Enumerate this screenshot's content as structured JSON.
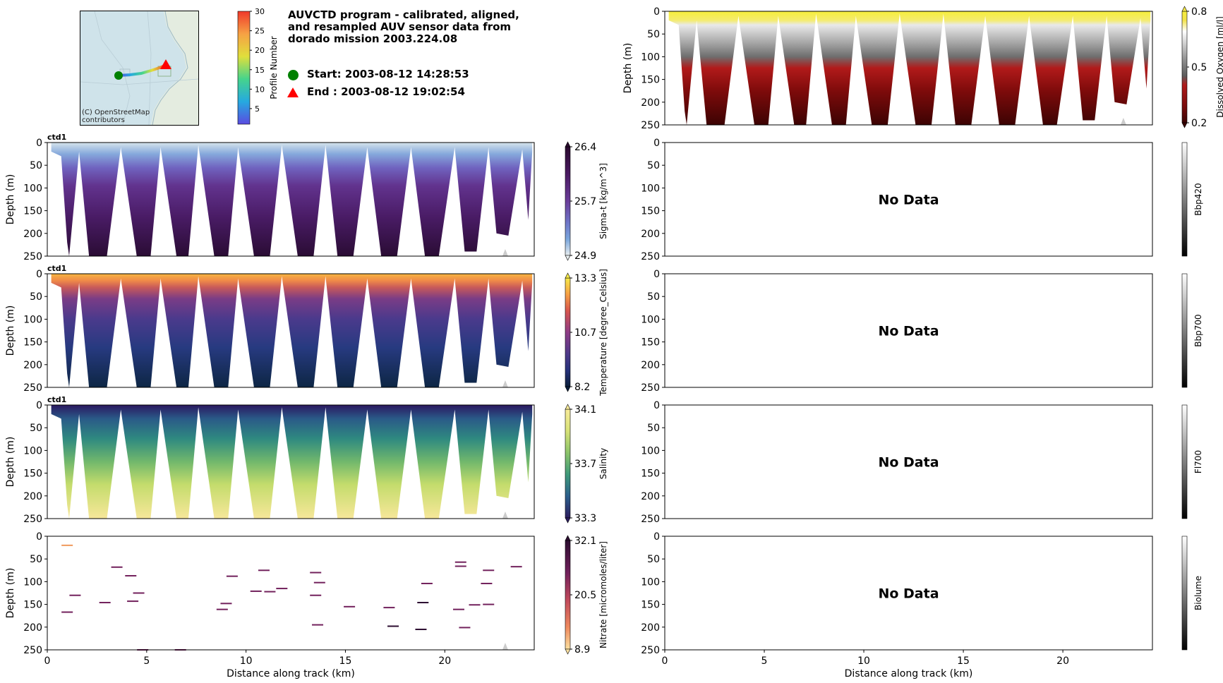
{
  "header": {
    "title_lines": [
      "AUVCTD program - calibrated, aligned,",
      "and resampled AUV sensor data from",
      "dorado mission 2003.224.08"
    ],
    "start_label": "Start: 2003-08-12 14:28:53",
    "end_label": "End  : 2003-08-12 19:02:54",
    "start_color": "#008000",
    "end_color": "#ff0000"
  },
  "map": {
    "credit_lines": [
      "(C) OpenStreetMap",
      "contributors"
    ]
  },
  "profile_colorbar": {
    "label": "Profile Number",
    "ticks": [
      "5",
      "10",
      "15",
      "20",
      "25",
      "30"
    ],
    "range": [
      1,
      30
    ]
  },
  "chart_data": [
    {
      "type": "heatmap",
      "id": "oxygen",
      "title": "",
      "xlabel": "",
      "ylabel": "Depth (m)",
      "xlim": [
        0,
        24.5
      ],
      "ylim": [
        250,
        0
      ],
      "y_ticks": [
        "0",
        "50",
        "100",
        "150",
        "200",
        "250"
      ],
      "cbar_label": "Dissolved Oxygen [ml/l]",
      "cbar_ticks": [
        "0.8",
        "0.5",
        "0.2"
      ],
      "no_data": false
    },
    {
      "type": "heatmap",
      "id": "sigma",
      "title": "ctd1",
      "xlabel": "",
      "ylabel": "Depth (m)",
      "xlim": [
        0,
        24.5
      ],
      "ylim": [
        250,
        0
      ],
      "y_ticks": [
        "0",
        "50",
        "100",
        "150",
        "200",
        "250"
      ],
      "cbar_label": "Sigma-t [kg/m^3]",
      "cbar_ticks": [
        "26.4",
        "25.7",
        "24.9"
      ],
      "no_data": false
    },
    {
      "type": "heatmap",
      "id": "temperature",
      "title": "ctd1",
      "xlabel": "",
      "ylabel": "Depth (m)",
      "xlim": [
        0,
        24.5
      ],
      "ylim": [
        250,
        0
      ],
      "y_ticks": [
        "0",
        "50",
        "100",
        "150",
        "200",
        "250"
      ],
      "cbar_label": "Temperature [degree_Celsius]",
      "cbar_ticks": [
        "13.3",
        "10.7",
        "8.2"
      ],
      "no_data": false
    },
    {
      "type": "heatmap",
      "id": "salinity",
      "title": "ctd1",
      "xlabel": "",
      "ylabel": "Depth (m)",
      "xlim": [
        0,
        24.5
      ],
      "ylim": [
        250,
        0
      ],
      "y_ticks": [
        "0",
        "50",
        "100",
        "150",
        "200",
        "250"
      ],
      "cbar_label": "Salinity",
      "cbar_ticks": [
        "34.1",
        "33.7",
        "33.3"
      ],
      "no_data": false
    },
    {
      "type": "heatmap",
      "id": "nitrate",
      "title": "",
      "xlabel": "Distance along track (km)",
      "ylabel": "Depth (m)",
      "xlim": [
        0,
        24.5
      ],
      "ylim": [
        250,
        0
      ],
      "x_ticks": [
        "0",
        "5",
        "10",
        "15",
        "20"
      ],
      "y_ticks": [
        "0",
        "50",
        "100",
        "150",
        "200",
        "250"
      ],
      "cbar_label": "Nitrate [micromoles/liter]",
      "cbar_ticks": [
        "32.1",
        "20.5",
        "8.9"
      ],
      "no_data": false
    },
    {
      "type": "heatmap",
      "id": "bbp420",
      "title": "",
      "xlabel": "",
      "ylabel": "",
      "xlim": [
        0,
        24.5
      ],
      "ylim": [
        250,
        0
      ],
      "y_ticks": [
        "0",
        "50",
        "100",
        "150",
        "200",
        "250"
      ],
      "cbar_label": "Bbp420",
      "cbar_ticks": [],
      "no_data": true,
      "no_data_label": "No Data"
    },
    {
      "type": "heatmap",
      "id": "bbp700",
      "title": "",
      "xlabel": "",
      "ylabel": "",
      "xlim": [
        0,
        24.5
      ],
      "ylim": [
        250,
        0
      ],
      "y_ticks": [
        "0",
        "50",
        "100",
        "150",
        "200",
        "250"
      ],
      "cbar_label": "Bbp700",
      "cbar_ticks": [],
      "no_data": true,
      "no_data_label": "No Data"
    },
    {
      "type": "heatmap",
      "id": "fl700",
      "title": "",
      "xlabel": "",
      "ylabel": "",
      "xlim": [
        0,
        24.5
      ],
      "ylim": [
        250,
        0
      ],
      "y_ticks": [
        "0",
        "50",
        "100",
        "150",
        "200",
        "250"
      ],
      "cbar_label": "Fl700",
      "cbar_ticks": [],
      "no_data": true,
      "no_data_label": "No Data"
    },
    {
      "type": "heatmap",
      "id": "biolume",
      "title": "",
      "xlabel": "Distance along track (km)",
      "ylabel": "",
      "xlim": [
        0,
        24.5
      ],
      "ylim": [
        250,
        0
      ],
      "x_ticks": [
        "0",
        "5",
        "10",
        "15",
        "20"
      ],
      "y_ticks": [
        "0",
        "50",
        "100",
        "150",
        "200",
        "250"
      ],
      "cbar_label": "Biolume",
      "cbar_ticks": [],
      "no_data": true,
      "no_data_label": "No Data"
    }
  ]
}
